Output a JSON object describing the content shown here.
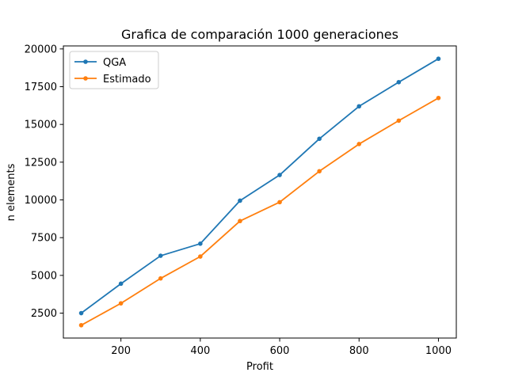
{
  "chart_data": {
    "type": "line",
    "title": "Grafica de comparación 1000 generaciones",
    "xlabel": "Profit",
    "ylabel": "n elements",
    "x": [
      100,
      200,
      300,
      400,
      500,
      600,
      700,
      800,
      900,
      1000
    ],
    "xlim": [
      55,
      1045
    ],
    "ylim": [
      850,
      20200
    ],
    "x_ticks": [
      200,
      400,
      600,
      800,
      1000
    ],
    "y_ticks": [
      2500,
      5000,
      7500,
      10000,
      12500,
      15000,
      17500,
      20000
    ],
    "x_tick_labels": [
      "200",
      "400",
      "600",
      "800",
      "1000"
    ],
    "y_tick_labels": [
      "2500",
      "5000",
      "7500",
      "10000",
      "12500",
      "15000",
      "17500",
      "20000"
    ],
    "grid": false,
    "legend_position": "top-left",
    "series": [
      {
        "name": "QGA",
        "color": "#1f77b4",
        "marker": "circle",
        "values": [
          2500,
          4450,
          6300,
          7100,
          9950,
          11650,
          14050,
          16200,
          17800,
          19350
        ]
      },
      {
        "name": "Estimado",
        "color": "#ff7f0e",
        "marker": "circle",
        "values": [
          1700,
          3150,
          4800,
          6250,
          8600,
          9850,
          11900,
          13700,
          15250,
          16750
        ]
      }
    ]
  }
}
